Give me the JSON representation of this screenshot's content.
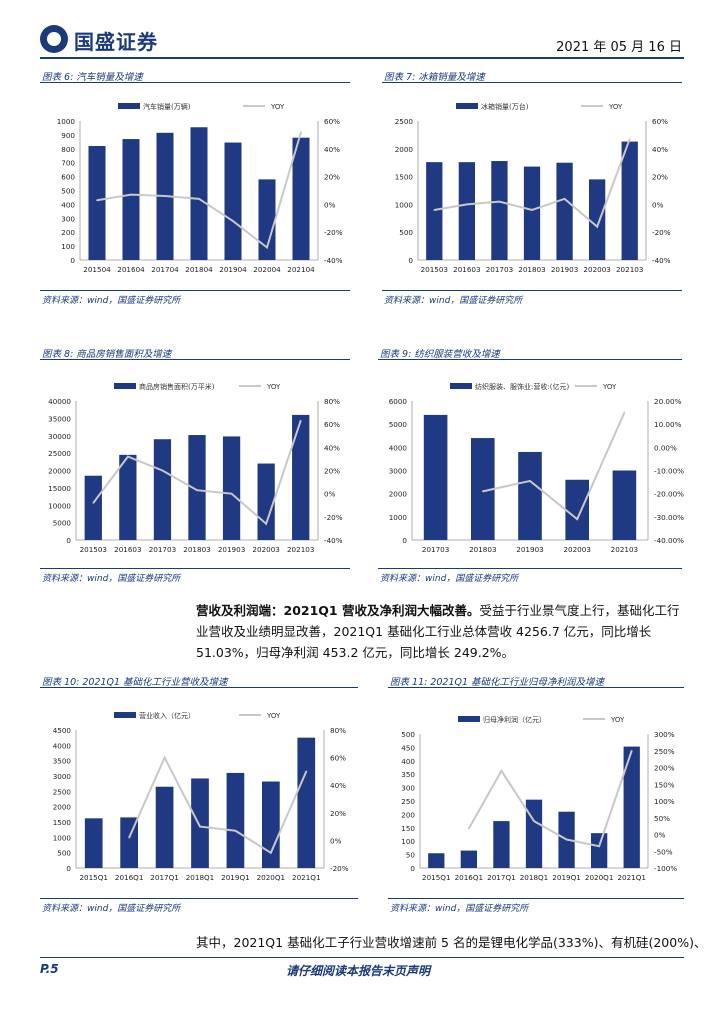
{
  "header": {
    "logo_text": "国盛证券",
    "date": "2021 年 05 月 16 日"
  },
  "colors": {
    "bar": "#1f3a82",
    "line": "#c8c8c8",
    "brand": "#1a3a7a"
  },
  "figures": [
    {
      "title": "图表 6: 汽车销量及增速",
      "source": "资料来源：wind，国盛证券研究所"
    },
    {
      "title": "图表 7: 冰箱销量及增速",
      "source": "资料来源：wind，国盛证券研究所"
    },
    {
      "title": "图表 8: 商品房销售面积及增速",
      "source": "资料来源：wind，国盛证券研究所"
    },
    {
      "title": "图表 9: 纺织服装营收及增速",
      "source": "资料来源：wind，国盛证券研究所"
    },
    {
      "title": "图表 10: 2021Q1 基础化工行业营收及增速",
      "source": "资料来源：wind，国盛证券研究所"
    },
    {
      "title": "图表 11: 2021Q1 基础化工行业归母净利润及增速",
      "source": "资料来源：wind，国盛证券研究所"
    }
  ],
  "paragraph": {
    "lead": "营收及利润端：2021Q1 营收及净利润大幅改善。",
    "body": "受益于行业景气度上行，基础化工行业营收及业绩明显改善，2021Q1 基础化工行业总体营收 4256.7 亿元，同比增长 51.03%，归母净利润 453.2 亿元，同比增长 249.2%。"
  },
  "tail_text": "其中，2021Q1 基础化工子行业营收增速前 5 名的是锂电化学品(333%)、有机硅(200%)、",
  "footer": {
    "page": "P.5",
    "note": "请仔细阅读本报告末页声明"
  },
  "chart_data": [
    {
      "type": "bar",
      "categories": [
        "201504",
        "201604",
        "201704",
        "201804",
        "201904",
        "202004",
        "202104"
      ],
      "series": [
        {
          "name": "汽车销量(万辆)",
          "type": "bar",
          "axis": "left",
          "values": [
            820,
            870,
            915,
            955,
            845,
            580,
            880
          ]
        },
        {
          "name": "YOY",
          "type": "line",
          "axis": "right",
          "values": [
            3,
            7,
            6,
            4,
            -12,
            -31,
            52
          ]
        }
      ],
      "ylim_left": [
        0,
        1000
      ],
      "yticks_left": [
        0,
        100,
        200,
        300,
        400,
        500,
        600,
        700,
        800,
        900,
        1000
      ],
      "ylim_right": [
        -40,
        60
      ],
      "yticks_right": [
        -40,
        -20,
        0,
        20,
        40,
        60
      ],
      "right_tick_labels": [
        "-40%",
        "-20%",
        "0%",
        "20%",
        "40%",
        "60%"
      ],
      "legend": "top"
    },
    {
      "type": "bar",
      "categories": [
        "201503",
        "201603",
        "201703",
        "201803",
        "201903",
        "202003",
        "202103"
      ],
      "series": [
        {
          "name": "冰箱销量(万台)",
          "type": "bar",
          "axis": "left",
          "values": [
            1760,
            1760,
            1780,
            1680,
            1750,
            1450,
            2130
          ]
        },
        {
          "name": "YOY",
          "type": "line",
          "axis": "right",
          "values": [
            -4,
            0,
            2,
            -4,
            4,
            -16,
            47
          ]
        }
      ],
      "ylim_left": [
        0,
        2500
      ],
      "yticks_left": [
        0,
        500,
        1000,
        1500,
        2000,
        2500
      ],
      "ylim_right": [
        -40,
        60
      ],
      "yticks_right": [
        -40,
        -20,
        0,
        20,
        40,
        60
      ],
      "right_tick_labels": [
        "-40%",
        "-20%",
        "0%",
        "20%",
        "40%",
        "60%"
      ],
      "legend": "top"
    },
    {
      "type": "bar",
      "categories": [
        "201503",
        "201603",
        "201703",
        "201803",
        "201903",
        "202003",
        "202103"
      ],
      "series": [
        {
          "name": "商品房销售面积(万平米)",
          "type": "bar",
          "axis": "left",
          "values": [
            18500,
            24500,
            29000,
            30200,
            29800,
            22000,
            36000
          ]
        },
        {
          "name": "YOY",
          "type": "line",
          "axis": "right",
          "values": [
            -8,
            32,
            20,
            3,
            0,
            -26,
            63
          ]
        }
      ],
      "ylim_left": [
        0,
        40000
      ],
      "yticks_left": [
        0,
        5000,
        10000,
        15000,
        20000,
        25000,
        30000,
        35000,
        40000
      ],
      "ylim_right": [
        -40,
        80
      ],
      "yticks_right": [
        -40,
        -20,
        0,
        20,
        40,
        60,
        80
      ],
      "right_tick_labels": [
        "-40%",
        "-20%",
        "0%",
        "20%",
        "40%",
        "60%",
        "80%"
      ],
      "legend": "top"
    },
    {
      "type": "bar",
      "categories": [
        "201703",
        "201803",
        "201903",
        "202003",
        "202103"
      ],
      "series": [
        {
          "name": "纺织服装、服饰业:营收:(亿元)",
          "type": "bar",
          "axis": "left",
          "values": [
            5400,
            4400,
            3800,
            2600,
            3000
          ]
        },
        {
          "name": "YOY",
          "type": "line",
          "axis": "right",
          "values": [
            null,
            -19,
            -14.5,
            -31,
            15
          ]
        }
      ],
      "ylim_left": [
        0,
        6000
      ],
      "yticks_left": [
        0,
        1000,
        2000,
        3000,
        4000,
        5000,
        6000
      ],
      "ylim_right": [
        -40,
        20
      ],
      "yticks_right": [
        -40,
        -30,
        -20,
        -10,
        0,
        10,
        20
      ],
      "right_tick_labels": [
        "-40.00%",
        "-30.00%",
        "-20.00%",
        "-10.00%",
        "0.00%",
        "10.00%",
        "20.00%"
      ],
      "legend": "top"
    },
    {
      "type": "bar",
      "categories": [
        "2015Q1",
        "2016Q1",
        "2017Q1",
        "2018Q1",
        "2019Q1",
        "2020Q1",
        "2021Q1"
      ],
      "series": [
        {
          "name": "营业收入（亿元）",
          "type": "bar",
          "axis": "left",
          "values": [
            1620,
            1650,
            2650,
            2920,
            3100,
            2820,
            4250
          ]
        },
        {
          "name": "YOY",
          "type": "line",
          "axis": "right",
          "values": [
            null,
            2,
            60,
            10,
            7,
            -9,
            50
          ]
        }
      ],
      "ylim_left": [
        0,
        4500
      ],
      "yticks_left": [
        0,
        500,
        1000,
        1500,
        2000,
        2500,
        3000,
        3500,
        4000,
        4500
      ],
      "ylim_right": [
        -20,
        80
      ],
      "yticks_right": [
        -20,
        0,
        20,
        40,
        60,
        80
      ],
      "right_tick_labels": [
        "-20%",
        "0%",
        "20%",
        "40%",
        "60%",
        "80%"
      ],
      "legend": "top"
    },
    {
      "type": "bar",
      "categories": [
        "2015Q1",
        "2016Q1",
        "2017Q1",
        "2018Q1",
        "2019Q1",
        "2020Q1",
        "2021Q1"
      ],
      "series": [
        {
          "name": "归母净利润（亿元）",
          "type": "bar",
          "axis": "left",
          "values": [
            55,
            65,
            175,
            255,
            210,
            130,
            453
          ]
        },
        {
          "name": "YOY",
          "type": "line",
          "axis": "right",
          "values": [
            null,
            18,
            190,
            40,
            -15,
            -35,
            250
          ]
        }
      ],
      "ylim_left": [
        0,
        500
      ],
      "yticks_left": [
        0,
        50,
        100,
        150,
        200,
        250,
        300,
        350,
        400,
        450,
        500
      ],
      "ylim_right": [
        -100,
        300
      ],
      "yticks_right": [
        -100,
        -50,
        0,
        50,
        100,
        150,
        200,
        250,
        300
      ],
      "right_tick_labels": [
        "-100%",
        "-50%",
        "0%",
        "50%",
        "100%",
        "150%",
        "200%",
        "250%",
        "300%"
      ],
      "legend": "top"
    }
  ]
}
